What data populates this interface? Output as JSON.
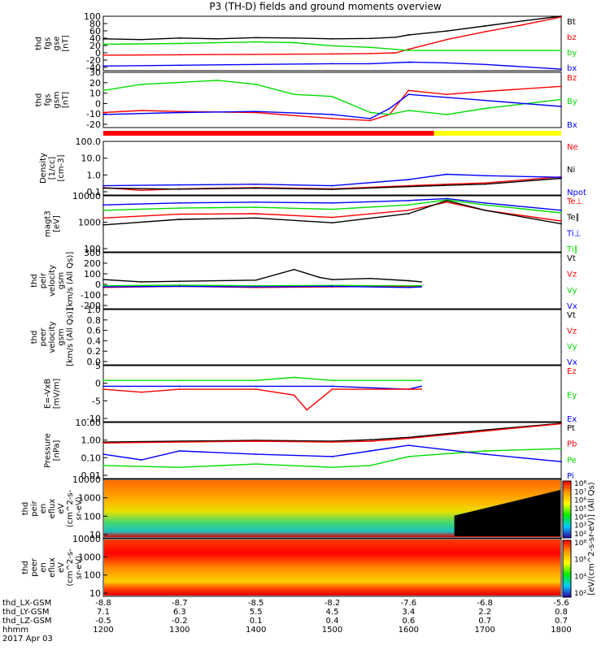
{
  "title": "P3 (TH-D) fields and ground moments overview",
  "colors": {
    "black": "#000000",
    "red": "#ff0000",
    "green": "#00dd00",
    "blue": "#0000ff",
    "mode_red": "#ff0000",
    "mode_yellow": "#ffff00"
  },
  "chart_data": [
    {
      "type": "line",
      "ylabel": [
        "thd",
        "fgs",
        "gse",
        "[nT]"
      ],
      "yticks": [
        "100",
        "80",
        "60",
        "40",
        "20",
        "0",
        "-20",
        "-40"
      ],
      "ylim": [
        -40,
        100
      ],
      "legend": [
        {
          "text": "Bt",
          "color": "black"
        },
        {
          "text": "bz",
          "color": "red"
        },
        {
          "text": "by",
          "color": "green"
        },
        {
          "text": "bx",
          "color": "blue"
        }
      ],
      "series": [
        {
          "name": "Bt",
          "color": "black",
          "x": [
            1200,
            1230,
            1300,
            1330,
            1400,
            1430,
            1500,
            1530,
            1550,
            1600,
            1630,
            1700,
            1730,
            1800
          ],
          "y": [
            42,
            40,
            44,
            42,
            45,
            44,
            42,
            43,
            46,
            52,
            62,
            75,
            88,
            100
          ]
        },
        {
          "name": "bz",
          "color": "red",
          "x": [
            1200,
            1300,
            1400,
            1500,
            1530,
            1550,
            1600,
            1630,
            1700,
            1730,
            1800
          ],
          "y": [
            0,
            1,
            2,
            3,
            4,
            6,
            15,
            40,
            60,
            78,
            98
          ]
        },
        {
          "name": "by",
          "color": "green",
          "x": [
            1200,
            1300,
            1400,
            1430,
            1500,
            1530,
            1600,
            1700,
            1800
          ],
          "y": [
            28,
            30,
            34,
            32,
            24,
            20,
            12,
            12,
            12
          ]
        },
        {
          "name": "bx",
          "color": "blue",
          "x": [
            1200,
            1300,
            1400,
            1500,
            1530,
            1600,
            1630,
            1700,
            1800
          ],
          "y": [
            -28,
            -26,
            -24,
            -22,
            -22,
            -18,
            -20,
            -24,
            -36
          ]
        }
      ]
    },
    {
      "type": "line",
      "ylabel": [
        "thd",
        "fgs",
        "gsm",
        "[nT]"
      ],
      "yticks": [
        "30",
        "20",
        "10",
        "0",
        "-10",
        "-20"
      ],
      "ylim": [
        -25,
        30
      ],
      "legend": [
        {
          "text": "Bz",
          "color": "red"
        },
        {
          "text": "By",
          "color": "green"
        },
        {
          "text": "Bx",
          "color": "blue"
        }
      ],
      "series": [
        {
          "name": "Bz",
          "color": "red",
          "x": [
            1200,
            1230,
            1300,
            1400,
            1500,
            1530,
            1545,
            1600,
            1630,
            1700,
            1800
          ],
          "y": [
            -10,
            -8,
            -9,
            -10,
            -16,
            -18,
            -12,
            12,
            8,
            11,
            16
          ]
        },
        {
          "name": "By",
          "color": "green",
          "x": [
            1200,
            1230,
            1300,
            1330,
            1400,
            1430,
            1500,
            1530,
            1545,
            1600,
            1630,
            1700,
            1800
          ],
          "y": [
            12,
            18,
            20,
            22,
            18,
            8,
            6,
            -10,
            -12,
            -8,
            -12,
            -6,
            3
          ]
        },
        {
          "name": "Bx",
          "color": "blue",
          "x": [
            1200,
            1300,
            1400,
            1500,
            1530,
            1545,
            1600,
            1700,
            1800
          ],
          "y": [
            -12,
            -10,
            -9,
            -12,
            -16,
            -6,
            8,
            2,
            -4
          ]
        }
      ]
    },
    {
      "type": "line",
      "ylabel": [
        "Density",
        "[1/cc]",
        "[cm-3]"
      ],
      "yticks": [
        "100.0",
        "10.0",
        "1.0",
        "0.1"
      ],
      "ylim": [
        0.1,
        300
      ],
      "yscale": "log",
      "legend": [
        {
          "text": "Ne",
          "color": "red"
        },
        {
          "text": "Ni",
          "color": "black"
        },
        {
          "text": "Npot",
          "color": "blue"
        }
      ],
      "series": [
        {
          "name": "Ne",
          "color": "red",
          "x": [
            1200,
            1230,
            1300,
            1400,
            1500,
            1600,
            1630,
            1700,
            1800
          ],
          "y": [
            0.3,
            0.2,
            0.25,
            0.3,
            0.25,
            0.4,
            0.5,
            0.6,
            1.5
          ]
        },
        {
          "name": "Ni",
          "color": "black",
          "x": [
            1200,
            1300,
            1400,
            1500,
            1600,
            1640,
            1700,
            1800
          ],
          "y": [
            0.28,
            0.24,
            0.28,
            0.23,
            0.35,
            0.45,
            0.5,
            1.2
          ]
        },
        {
          "name": "Npot",
          "color": "blue",
          "x": [
            1200,
            1300,
            1400,
            1500,
            1600,
            1630,
            1700,
            1800
          ],
          "y": [
            0.4,
            0.45,
            0.5,
            0.4,
            1.0,
            2.2,
            1.8,
            1.4
          ]
        }
      ]
    },
    {
      "type": "line",
      "ylabel": [
        "magt3",
        "[eV]"
      ],
      "yticks": [
        "10000",
        "1000",
        "100"
      ],
      "ylim": [
        100,
        12000
      ],
      "yscale": "log",
      "legend": [
        {
          "text": "Te⊥",
          "color": "red"
        },
        {
          "text": "Te∥",
          "color": "black"
        },
        {
          "text": "Ti⊥",
          "color": "blue"
        },
        {
          "text": "Ti∥",
          "color": "green"
        }
      ],
      "series": [
        {
          "name": "Ti⊥",
          "color": "blue",
          "x": [
            1200,
            1300,
            1400,
            1500,
            1600,
            1630,
            1700,
            1800
          ],
          "y": [
            5500,
            6500,
            7000,
            6500,
            8000,
            9500,
            6500,
            3500
          ]
        },
        {
          "name": "Ti∥",
          "color": "green",
          "x": [
            1200,
            1300,
            1400,
            1500,
            1600,
            1630,
            1700,
            1800
          ],
          "y": [
            3500,
            4200,
            4500,
            3800,
            5500,
            8500,
            5500,
            2800
          ]
        },
        {
          "name": "Te⊥",
          "color": "red",
          "x": [
            1200,
            1300,
            1400,
            1500,
            1600,
            1630,
            1700,
            1800
          ],
          "y": [
            1800,
            2500,
            2600,
            1900,
            3500,
            7000,
            3500,
            1400
          ]
        },
        {
          "name": "Te∥",
          "color": "black",
          "x": [
            1200,
            1300,
            1400,
            1500,
            1600,
            1630,
            1700,
            1800
          ],
          "y": [
            1000,
            1600,
            1800,
            1200,
            2600,
            8000,
            3500,
            1100
          ]
        }
      ]
    },
    {
      "type": "line",
      "ylabel": [
        "thd",
        "peir",
        "velocity",
        "gsm",
        "[km/s (All Qs)]"
      ],
      "yticks": [
        "300",
        "200",
        "100",
        "0",
        "-100",
        "-200"
      ],
      "ylim": [
        -200,
        300
      ],
      "legend": [
        {
          "text": "Vt",
          "color": "black"
        },
        {
          "text": "Vz",
          "color": "red"
        },
        {
          "text": "Vy",
          "color": "green"
        },
        {
          "text": "Vx",
          "color": "blue"
        }
      ],
      "series": [
        {
          "name": "Vt",
          "color": "black",
          "x": [
            1200,
            1230,
            1300,
            1400,
            1430,
            1450,
            1500,
            1530,
            1600,
            1610
          ],
          "y": [
            60,
            40,
            45,
            55,
            150,
            80,
            60,
            70,
            50,
            40
          ]
        },
        {
          "name": "Vz",
          "color": "red",
          "x": [
            1200,
            1300,
            1400,
            1500,
            1600,
            1610
          ],
          "y": [
            -10,
            0,
            -10,
            -5,
            0,
            0
          ]
        },
        {
          "name": "Vy",
          "color": "green",
          "x": [
            1200,
            1300,
            1400,
            1500,
            1600,
            1610
          ],
          "y": [
            5,
            10,
            5,
            8,
            5,
            5
          ]
        },
        {
          "name": "Vx",
          "color": "blue",
          "x": [
            1200,
            1300,
            1400,
            1500,
            1600,
            1610
          ],
          "y": [
            -5,
            0,
            -5,
            0,
            -10,
            -5
          ]
        }
      ]
    },
    {
      "type": "line",
      "ylabel": [
        "thd",
        "peer",
        "velocity",
        "gsm",
        "[km/s (All Qs)]"
      ],
      "yticks": [
        "1.0",
        "0.8",
        "0.6",
        "0.4",
        "0.2",
        "0.0"
      ],
      "ylim": [
        0,
        1
      ],
      "legend": [
        {
          "text": "Vt",
          "color": "black"
        },
        {
          "text": "Vz",
          "color": "red"
        },
        {
          "text": "Vy",
          "color": "green"
        },
        {
          "text": "Vx",
          "color": "blue"
        }
      ],
      "series": []
    },
    {
      "type": "line",
      "ylabel": [
        "E=-VxB",
        "[mV/m]"
      ],
      "yticks": [
        "5",
        "0",
        "-5",
        "-10"
      ],
      "ylim": [
        -12,
        7
      ],
      "legend": [
        {
          "text": "Ez",
          "color": "red"
        },
        {
          "text": "Ey",
          "color": "green"
        },
        {
          "text": "Ex",
          "color": "blue"
        }
      ],
      "series": [
        {
          "name": "Ey",
          "color": "green",
          "x": [
            1200,
            1300,
            1400,
            1430,
            1500,
            1600,
            1610
          ],
          "y": [
            2,
            2,
            2,
            3,
            2,
            2,
            2
          ]
        },
        {
          "name": "Ex",
          "color": "blue",
          "x": [
            1200,
            1300,
            1400,
            1500,
            1600,
            1610
          ],
          "y": [
            0,
            0,
            0,
            0,
            -1,
            0
          ]
        },
        {
          "name": "Ez",
          "color": "red",
          "x": [
            1200,
            1230,
            1300,
            1400,
            1430,
            1440,
            1500,
            1600,
            1610
          ],
          "y": [
            -1,
            -2,
            -1,
            -1,
            -3,
            -8,
            -1,
            -1,
            -1
          ]
        }
      ]
    },
    {
      "type": "line",
      "ylabel": [
        "Pressure",
        "[nPa]"
      ],
      "yticks": [
        "10.00",
        "1.00",
        "0.10",
        "0.01"
      ],
      "ylim": [
        0.01,
        10
      ],
      "yscale": "log",
      "legend": [
        {
          "text": "Pt",
          "color": "black"
        },
        {
          "text": "Pb",
          "color": "red"
        },
        {
          "text": "Pe",
          "color": "green"
        },
        {
          "text": "Pi",
          "color": "blue"
        }
      ],
      "series": [
        {
          "name": "Pt",
          "color": "black",
          "x": [
            1200,
            1300,
            1400,
            1500,
            1530,
            1600,
            1700,
            1800
          ],
          "y": [
            0.9,
            1.0,
            1.1,
            1.0,
            1.2,
            1.6,
            4.0,
            9.0
          ]
        },
        {
          "name": "Pb",
          "color": "red",
          "x": [
            1200,
            1300,
            1400,
            1500,
            1530,
            1600,
            1700,
            1800
          ],
          "y": [
            0.8,
            0.9,
            1.0,
            0.9,
            1.0,
            1.4,
            3.5,
            8.5
          ]
        },
        {
          "name": "Pe",
          "color": "green",
          "x": [
            1200,
            1300,
            1400,
            1500,
            1530,
            1600,
            1700,
            1800
          ],
          "y": [
            0.05,
            0.04,
            0.06,
            0.04,
            0.05,
            0.15,
            0.3,
            0.4
          ]
        },
        {
          "name": "Pi",
          "color": "blue",
          "x": [
            1200,
            1230,
            1300,
            1400,
            1500,
            1530,
            1600,
            1700,
            1800
          ],
          "y": [
            0.2,
            0.1,
            0.3,
            0.2,
            0.15,
            0.3,
            0.6,
            0.2,
            0.08
          ]
        }
      ]
    },
    {
      "type": "heatmap",
      "ylabel": [
        "thd",
        "peir",
        "en",
        "eflux",
        "eV",
        "(cm^2-s-",
        "sr-eV)"
      ],
      "yticks": [
        "10000",
        "1000",
        "100",
        "10"
      ]
    },
    {
      "type": "heatmap",
      "ylabel": [
        "thd",
        "peer",
        "en",
        "eflux",
        "eV",
        "(cm^2-s-",
        "sr-eV)"
      ],
      "yticks": [
        "10000",
        "1000",
        "100",
        "10"
      ]
    }
  ],
  "colorbar": {
    "ticks": [
      "10⁸",
      "10⁷",
      "10⁶",
      "10⁵",
      "10⁴",
      "10³",
      "10²"
    ],
    "ticks2": [
      "10⁸",
      "10⁶",
      "10⁴",
      "10²"
    ],
    "label": "[eV/(cm^2-s-sr-eV)] (All Qs)"
  },
  "mode_bar": {
    "red_until_fraction": 0.722
  },
  "xaxis": {
    "rows": [
      {
        "label": "thd_LX-GSM",
        "values": [
          "-8.8",
          "-8.7",
          "-8.5",
          "-8.2",
          "-7.6",
          "-6.8",
          "-5.6"
        ]
      },
      {
        "label": "thd_LY-GSM",
        "values": [
          "7.1",
          "6.3",
          "5.5",
          "4.5",
          "3.4",
          "2.2",
          "0.8"
        ]
      },
      {
        "label": "thd_LZ-GSM",
        "values": [
          "-0.5",
          "-0.2",
          "0.1",
          "0.4",
          "0.6",
          "0.7",
          "0.7"
        ]
      },
      {
        "label": "hhmm",
        "values": [
          "1200",
          "1300",
          "1400",
          "1500",
          "1600",
          "1700",
          "1800"
        ]
      }
    ],
    "date": "2017 Apr 03"
  }
}
